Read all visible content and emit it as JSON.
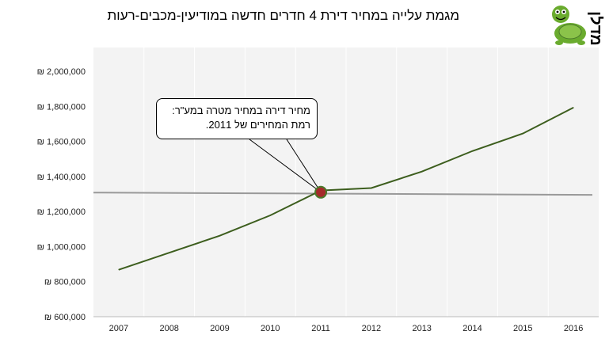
{
  "chart_data": {
    "type": "line",
    "title": "מגמת עלייה במחיר דירת 4 חדרים חדשה במודיעין-מכבים-רעות",
    "x": [
      "2007",
      "2008",
      "2009",
      "2010",
      "2011",
      "2012",
      "2013",
      "2014",
      "2015",
      "2016"
    ],
    "ylim": [
      600000,
      2000000
    ],
    "yticks": [
      600000,
      800000,
      1000000,
      1200000,
      1400000,
      1600000,
      1800000,
      2000000
    ],
    "ytick_labels": [
      "₪ 600,000",
      "₪ 800,000",
      "₪ 1,000,000",
      "₪ 1,200,000",
      "₪ 1,400,000",
      "₪ 1,600,000",
      "₪ 1,800,000",
      "₪ 2,000,000"
    ],
    "grid": "vertical",
    "series": [
      {
        "color": "#3d5e1e",
        "values": [
          868000,
          965000,
          1062000,
          1178000,
          1320000,
          1334000,
          1428000,
          1545000,
          1645000,
          1793000
        ]
      }
    ],
    "reference_line": {
      "color": "#999999",
      "y_start": 1308000,
      "y_end": 1295000
    },
    "highlight": {
      "x": "2011",
      "y": 1310000,
      "fill": "#a52a2a",
      "ring": "#4a7a2a"
    },
    "annotation": {
      "text_line1": "מחיר דירה במחיר מטרה במע\"ר:",
      "text_line2": "רמת המחירים של 2011."
    }
  },
  "logo": {
    "text": "מדלן",
    "turtle_color": "#6aab2e"
  }
}
